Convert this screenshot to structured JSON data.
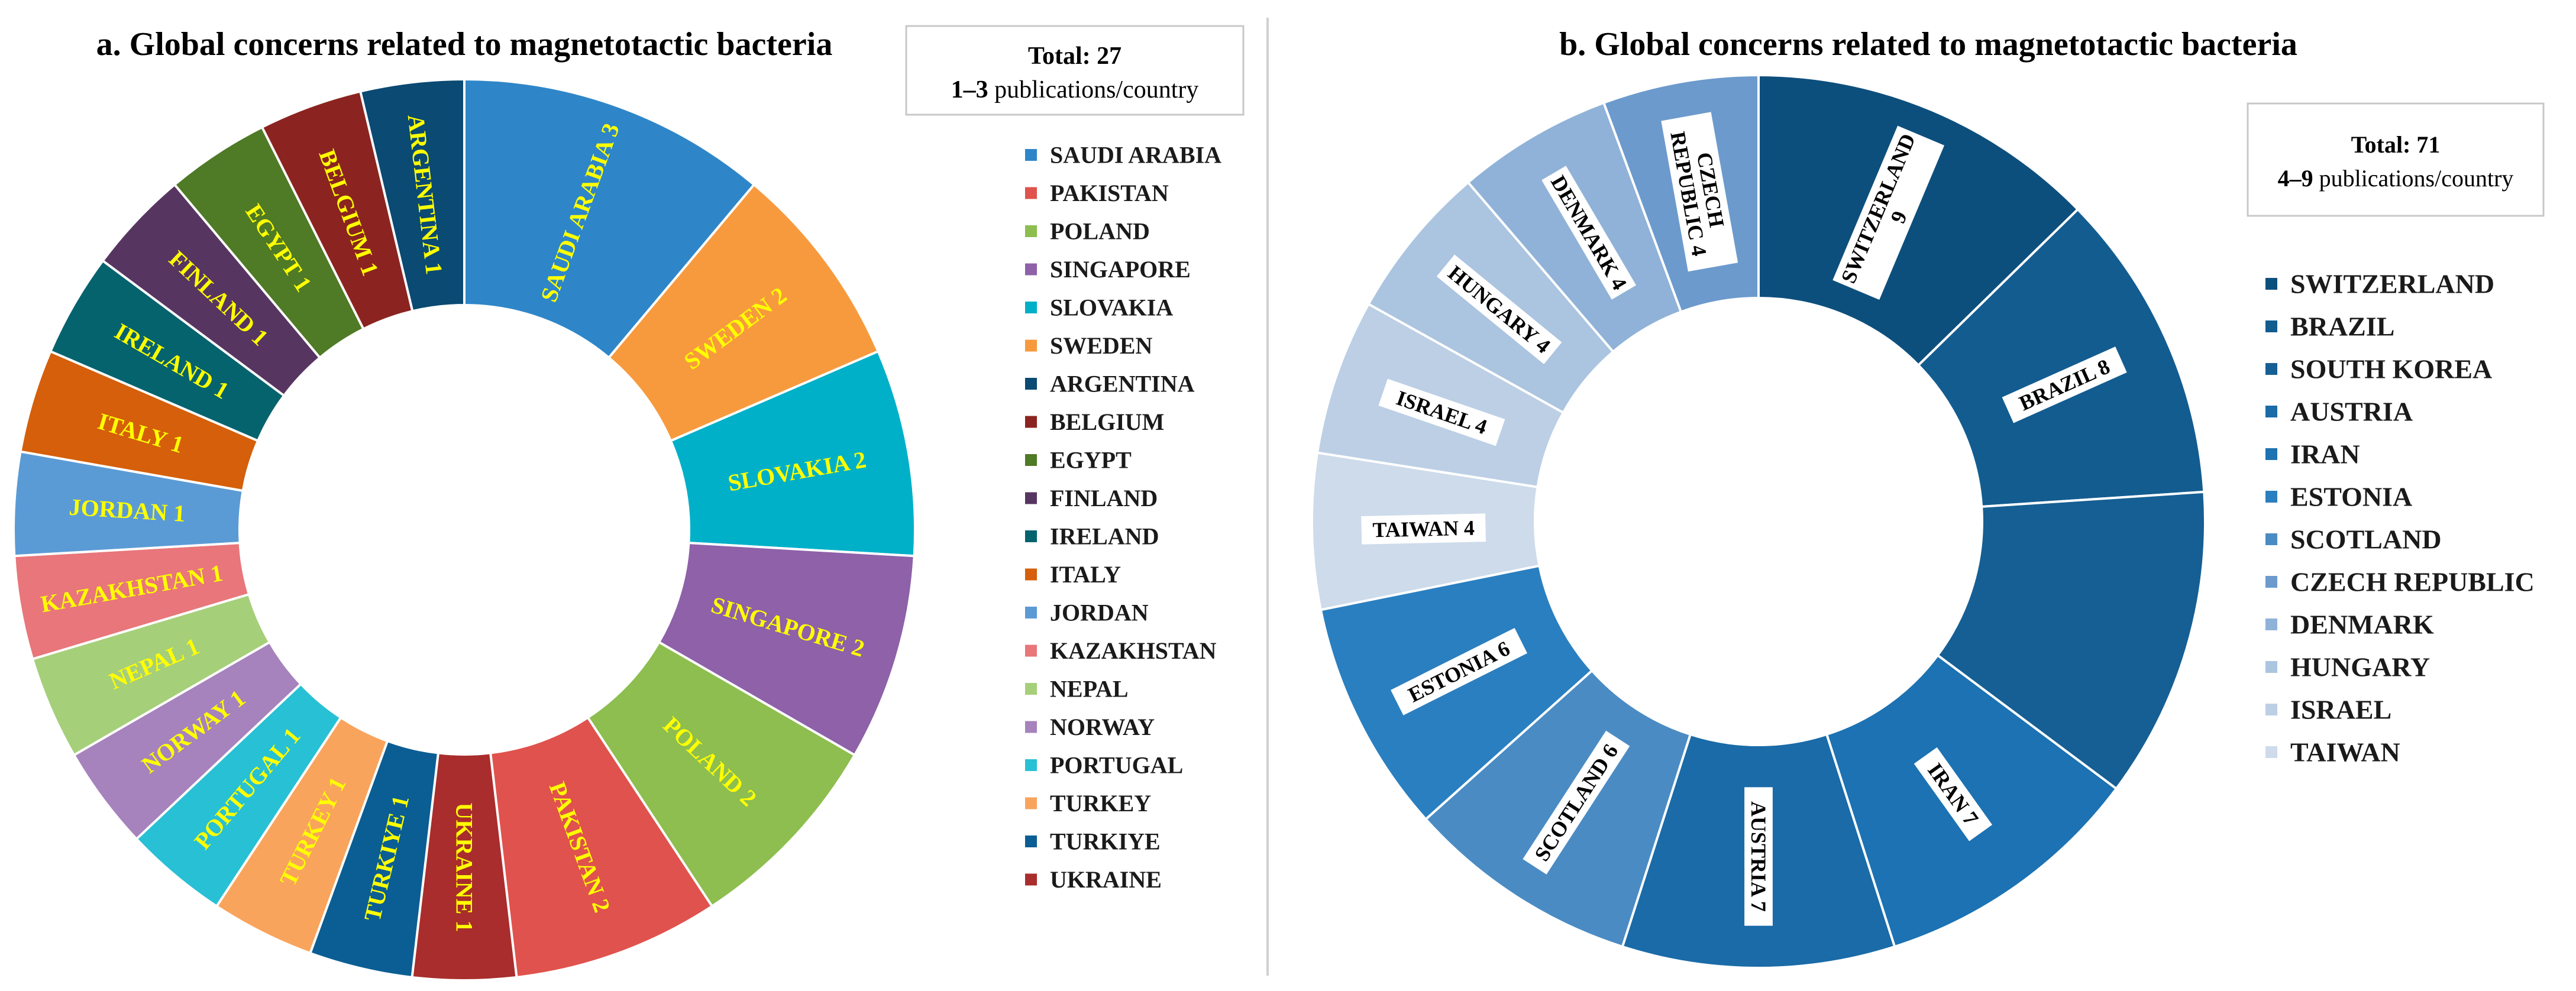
{
  "chart_data": [
    {
      "type": "pie",
      "style": "donut",
      "title": "a. Global concerns related to magnetotactic bacteria",
      "summary": {
        "total_label": "Total:",
        "total_value": "27",
        "range_prefix": "1–3",
        "range_text": "publications/country"
      },
      "legend_placement": "right",
      "label_color": "#ffff00",
      "slices": [
        {
          "name": "SAUDI ARABIA",
          "value": 3,
          "color": "#2e86c8"
        },
        {
          "name": "SWEDEN",
          "value": 2,
          "color": "#f79a3e"
        },
        {
          "name": "SLOVAKIA",
          "value": 2,
          "color": "#00b0c8"
        },
        {
          "name": "SINGAPORE",
          "value": 2,
          "color": "#8e61a8"
        },
        {
          "name": "POLAND",
          "value": 2,
          "color": "#8dbe4f"
        },
        {
          "name": "PAKISTAN",
          "value": 2,
          "color": "#e0524d"
        },
        {
          "name": "UKRAINE",
          "value": 1,
          "color": "#a82d2c"
        },
        {
          "name": "TURKIYE",
          "value": 1,
          "color": "#0b5e93"
        },
        {
          "name": "TURKEY",
          "value": 1,
          "color": "#f9a45c"
        },
        {
          "name": "PORTUGAL",
          "value": 1,
          "color": "#28c0d4"
        },
        {
          "name": "NORWAY",
          "value": 1,
          "color": "#a683bc"
        },
        {
          "name": "NEPAL",
          "value": 1,
          "color": "#a6cf7a"
        },
        {
          "name": "KAZAKHSTAN",
          "value": 1,
          "color": "#e8767a"
        },
        {
          "name": "JORDAN",
          "value": 1,
          "color": "#5b9bd5"
        },
        {
          "name": "ITALY",
          "value": 1,
          "color": "#d55f0a"
        },
        {
          "name": "IRELAND",
          "value": 1,
          "color": "#05636e"
        },
        {
          "name": "FINLAND",
          "value": 1,
          "color": "#573561"
        },
        {
          "name": "EGYPT",
          "value": 1,
          "color": "#4f7a26"
        },
        {
          "name": "BELGIUM",
          "value": 1,
          "color": "#8b2420"
        },
        {
          "name": "ARGENTINA",
          "value": 1,
          "color": "#0a4a73"
        }
      ],
      "legend": [
        {
          "name": "SAUDI ARABIA",
          "color": "#2e86c8"
        },
        {
          "name": "PAKISTAN",
          "color": "#e0524d"
        },
        {
          "name": "POLAND",
          "color": "#8dbe4f"
        },
        {
          "name": "SINGAPORE",
          "color": "#8e61a8"
        },
        {
          "name": "SLOVAKIA",
          "color": "#00b0c8"
        },
        {
          "name": "SWEDEN",
          "color": "#f79a3e"
        },
        {
          "name": "ARGENTINA",
          "color": "#0a4a73"
        },
        {
          "name": "BELGIUM",
          "color": "#8b2420"
        },
        {
          "name": "EGYPT",
          "color": "#4f7a26"
        },
        {
          "name": "FINLAND",
          "color": "#573561"
        },
        {
          "name": "IRELAND",
          "color": "#05636e"
        },
        {
          "name": "ITALY",
          "color": "#d55f0a"
        },
        {
          "name": "JORDAN",
          "color": "#5b9bd5"
        },
        {
          "name": "KAZAKHSTAN",
          "color": "#e8767a"
        },
        {
          "name": "NEPAL",
          "color": "#a6cf7a"
        },
        {
          "name": "NORWAY",
          "color": "#a683bc"
        },
        {
          "name": "PORTUGAL",
          "color": "#28c0d4"
        },
        {
          "name": "TURKEY",
          "color": "#f9a45c"
        },
        {
          "name": "TURKIYE",
          "color": "#0b5e93"
        },
        {
          "name": "UKRAINE",
          "color": "#a82d2c"
        }
      ]
    },
    {
      "type": "pie",
      "style": "donut",
      "title": "b. Global concerns related to magnetotactic bacteria",
      "summary": {
        "total_label": "Total:",
        "total_value": "71",
        "range_prefix": "4–9",
        "range_text": "publications/country"
      },
      "legend_placement": "right",
      "label_color": "#000000",
      "label_background": "#ffffff",
      "slices": [
        {
          "name": "SWITZERLAND",
          "value": 9,
          "color": "#0d4f7c"
        },
        {
          "name": "BRAZIL",
          "value": 8,
          "color": "#135c90"
        },
        {
          "name": "SOUTH KOREA",
          "value": 8,
          "color": "#155f94"
        },
        {
          "name": "IRAN",
          "value": 7,
          "color": "#1c72b2"
        },
        {
          "name": "AUSTRIA",
          "value": 7,
          "color": "#1a6ba8"
        },
        {
          "name": "SCOTLAND",
          "value": 6,
          "color": "#4a8bc4"
        },
        {
          "name": "ESTONIA",
          "value": 6,
          "color": "#2a7fc0"
        },
        {
          "name": "TAIWAN",
          "value": 4,
          "color": "#cddbea"
        },
        {
          "name": "ISRAEL",
          "value": 4,
          "color": "#bccfe5"
        },
        {
          "name": "HUNGARY",
          "value": 4,
          "color": "#abc4e0"
        },
        {
          "name": "DENMARK",
          "value": 4,
          "color": "#90b2d8"
        },
        {
          "name": "CZECH REPUBLIC",
          "value": 4,
          "color": "#6c9acd"
        }
      ],
      "slice_labels": [
        {
          "name": "SWITZERLAND",
          "lines": [
            "SWITZERLAND",
            "9"
          ]
        },
        {
          "name": "BRAZIL",
          "lines": [
            "BRAZIL 8"
          ]
        },
        {
          "name": "SOUTH KOREA",
          "lines": []
        },
        {
          "name": "IRAN",
          "lines": [
            "IRAN 7"
          ]
        },
        {
          "name": "AUSTRIA",
          "lines": [
            "AUSTRIA 7"
          ]
        },
        {
          "name": "SCOTLAND",
          "lines": [
            "SCOTLAND 6"
          ]
        },
        {
          "name": "ESTONIA",
          "lines": [
            "ESTONIA 6"
          ]
        },
        {
          "name": "TAIWAN",
          "lines": [
            "TAIWAN 4"
          ]
        },
        {
          "name": "ISRAEL",
          "lines": [
            "ISRAEL 4"
          ]
        },
        {
          "name": "HUNGARY",
          "lines": [
            "HUNGARY 4"
          ]
        },
        {
          "name": "DENMARK",
          "lines": [
            "DENMARK 4"
          ]
        },
        {
          "name": "CZECH REPUBLIC",
          "lines": [
            "CZECH",
            "REPUBLIC 4"
          ]
        }
      ],
      "legend": [
        {
          "name": "SWITZERLAND",
          "color": "#0d4f7c"
        },
        {
          "name": "BRAZIL",
          "color": "#135c90"
        },
        {
          "name": "SOUTH KOREA",
          "color": "#155f94"
        },
        {
          "name": "AUSTRIA",
          "color": "#1a6ba8"
        },
        {
          "name": "IRAN",
          "color": "#1c72b2"
        },
        {
          "name": "ESTONIA",
          "color": "#2a7fc0"
        },
        {
          "name": "SCOTLAND",
          "color": "#4a8bc4"
        },
        {
          "name": "CZECH REPUBLIC",
          "color": "#6c9acd"
        },
        {
          "name": "DENMARK",
          "color": "#90b2d8"
        },
        {
          "name": "HUNGARY",
          "color": "#abc4e0"
        },
        {
          "name": "ISRAEL",
          "color": "#bccfe5"
        },
        {
          "name": "TAIWAN",
          "color": "#cddbea"
        }
      ]
    }
  ]
}
